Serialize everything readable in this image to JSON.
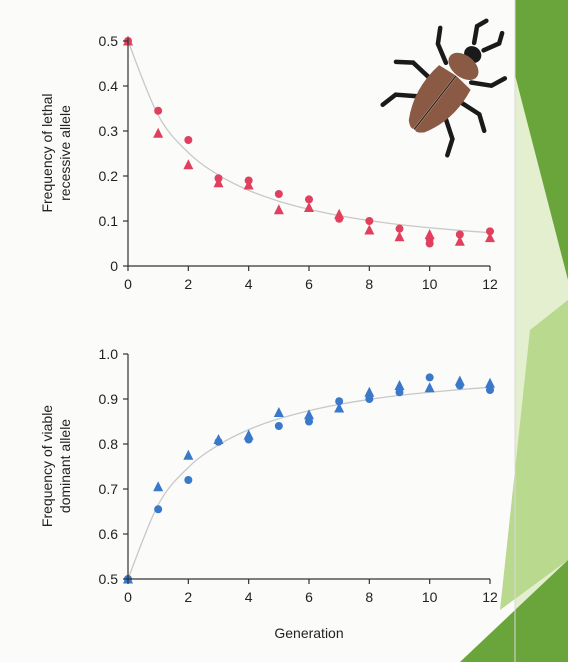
{
  "colors": {
    "page": "#fbfbf9",
    "slide_green_dark": "#6aa53c",
    "slide_green_light": "#b8d98e",
    "slide_green_pale": "#e3efcf",
    "red_series": "#e0405e",
    "blue_series": "#3a78c9",
    "fit_curve": "#c8c8c8",
    "axis": "#333333"
  },
  "illustration": {
    "name": "beetle",
    "body_color": "#8a5a44"
  },
  "chart_data": [
    {
      "type": "scatter",
      "title": "",
      "xlabel": "",
      "ylabel_line1": "Frequency of lethal",
      "ylabel_line2": "recessive allele",
      "xlim": [
        0,
        12
      ],
      "ylim": [
        0,
        0.5
      ],
      "xticks": [
        "0",
        "2",
        "4",
        "6",
        "8",
        "10",
        "12"
      ],
      "yticks": [
        "0",
        "0.1",
        "0.2",
        "0.3",
        "0.4",
        "0.5"
      ],
      "grid": false,
      "legend": "none",
      "fit_curve": {
        "x": [
          0,
          1,
          2,
          3,
          4,
          5,
          6,
          7,
          8,
          9,
          10,
          11,
          12
        ],
        "y": [
          0.5,
          0.335,
          0.252,
          0.202,
          0.168,
          0.144,
          0.126,
          0.112,
          0.101,
          0.092,
          0.085,
          0.079,
          0.074
        ]
      },
      "series": [
        {
          "marker": "circle",
          "color": "#e0405e",
          "x": [
            0,
            1,
            2,
            3,
            4,
            5,
            6,
            7,
            8,
            9,
            10,
            10,
            11,
            12
          ],
          "y": [
            0.5,
            0.345,
            0.28,
            0.195,
            0.19,
            0.16,
            0.148,
            0.105,
            0.1,
            0.083,
            0.06,
            0.05,
            0.07,
            0.077
          ]
        },
        {
          "marker": "triangle",
          "color": "#e0405e",
          "x": [
            0,
            1,
            2,
            3,
            4,
            5,
            6,
            7,
            8,
            9,
            10,
            11,
            12
          ],
          "y": [
            0.5,
            0.295,
            0.225,
            0.185,
            0.18,
            0.125,
            0.13,
            0.115,
            0.08,
            0.065,
            0.07,
            0.055,
            0.063
          ]
        }
      ]
    },
    {
      "type": "scatter",
      "title": "",
      "xlabel": "Generation",
      "ylabel_line1": "Frequency of viable",
      "ylabel_line2": "dominant allele",
      "xlim": [
        0,
        12
      ],
      "ylim": [
        0.5,
        1.0
      ],
      "xticks": [
        "0",
        "2",
        "4",
        "6",
        "8",
        "10",
        "12"
      ],
      "yticks": [
        "0.5",
        "0.6",
        "0.7",
        "0.8",
        "0.9",
        "1.0"
      ],
      "grid": false,
      "legend": "none",
      "fit_curve": {
        "x": [
          0,
          1,
          2,
          3,
          4,
          5,
          6,
          7,
          8,
          9,
          10,
          11,
          12
        ],
        "y": [
          0.5,
          0.665,
          0.748,
          0.798,
          0.832,
          0.856,
          0.874,
          0.888,
          0.899,
          0.908,
          0.915,
          0.921,
          0.926
        ]
      },
      "series": [
        {
          "marker": "circle",
          "color": "#3a78c9",
          "x": [
            0,
            1,
            2,
            3,
            4,
            5,
            6,
            7,
            8,
            9,
            10,
            11,
            12
          ],
          "y": [
            0.5,
            0.655,
            0.72,
            0.805,
            0.81,
            0.84,
            0.85,
            0.895,
            0.9,
            0.915,
            0.948,
            0.93,
            0.92
          ]
        },
        {
          "marker": "triangle",
          "color": "#3a78c9",
          "x": [
            0,
            1,
            2,
            3,
            4,
            5,
            6,
            7,
            8,
            9,
            10,
            11,
            12
          ],
          "y": [
            0.5,
            0.705,
            0.775,
            0.81,
            0.82,
            0.87,
            0.865,
            0.88,
            0.915,
            0.93,
            0.925,
            0.94,
            0.935
          ]
        }
      ]
    }
  ]
}
